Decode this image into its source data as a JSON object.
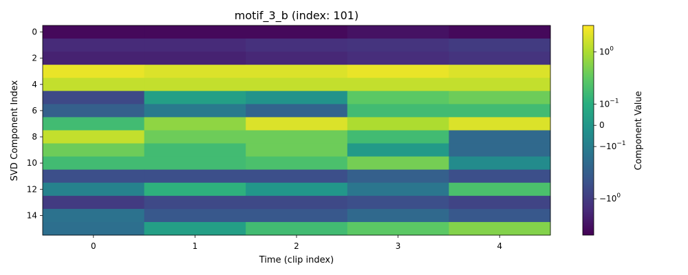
{
  "chart_data": {
    "type": "heatmap",
    "title": "motif_3_b (index: 101)",
    "xlabel": "Time (clip index)",
    "ylabel": "SVD Component Index",
    "x_ticks": [
      "0",
      "1",
      "2",
      "3",
      "4"
    ],
    "y_ticks": [
      "0",
      "2",
      "4",
      "6",
      "8",
      "10",
      "12",
      "14"
    ],
    "colorbar": {
      "label": "Component Value",
      "scale": "symlog",
      "colormap": "viridis",
      "range": [
        -3.5,
        2.5
      ],
      "ticks": [
        {
          "value": 1,
          "label": "10^0"
        },
        {
          "value": 0.1,
          "label": "10^-1"
        },
        {
          "value": 0,
          "label": "0"
        },
        {
          "value": -0.1,
          "label": "-10^-1"
        },
        {
          "value": -1,
          "label": "-10^0"
        }
      ]
    },
    "columns": [
      0,
      1,
      2,
      3,
      4
    ],
    "rows": 16,
    "values": [
      [
        -3.0,
        -3.0,
        -3.0,
        -2.5,
        -3.0
      ],
      [
        -1.5,
        -1.5,
        -1.3,
        -1.2,
        -1.0
      ],
      [
        -1.8,
        -1.8,
        -1.6,
        -1.4,
        -1.2
      ],
      [
        2.0,
        1.7,
        1.7,
        2.0,
        1.7
      ],
      [
        1.3,
        1.3,
        1.3,
        1.3,
        1.3
      ],
      [
        -0.7,
        0.03,
        -0.01,
        0.35,
        0.45
      ],
      [
        -0.35,
        -0.12,
        -0.3,
        0.2,
        0.2
      ],
      [
        0.2,
        0.7,
        1.7,
        1.0,
        1.7
      ],
      [
        1.3,
        0.45,
        0.45,
        0.2,
        -0.25
      ],
      [
        0.45,
        0.2,
        0.45,
        0.01,
        -0.25
      ],
      [
        0.2,
        0.2,
        0.25,
        0.5,
        -0.04
      ],
      [
        -0.6,
        -0.6,
        -0.6,
        -0.35,
        -0.6
      ],
      [
        -0.08,
        0.12,
        0.0,
        -0.15,
        0.25
      ],
      [
        -1.0,
        -0.7,
        -0.7,
        -0.6,
        -0.8
      ],
      [
        -0.18,
        -0.45,
        -0.45,
        -0.25,
        -0.45
      ],
      [
        -0.2,
        0.03,
        0.2,
        0.35,
        0.6
      ]
    ]
  }
}
